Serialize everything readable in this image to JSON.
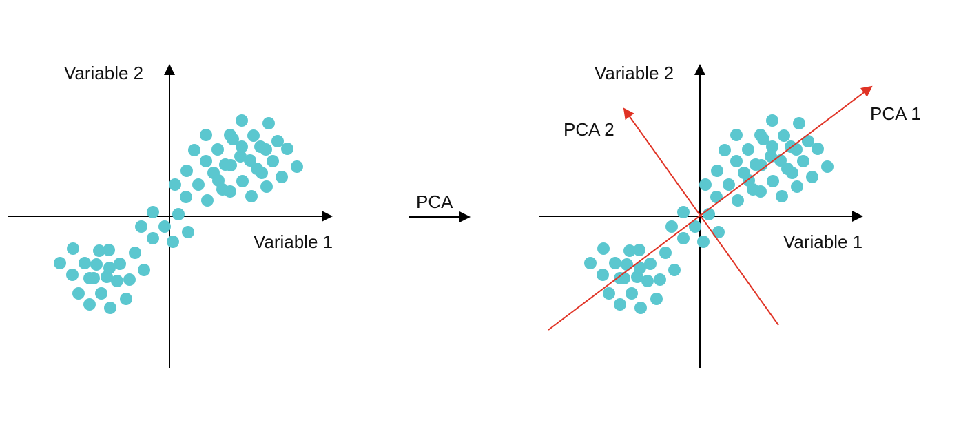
{
  "colors": {
    "axis": "#000000",
    "point": "#5bc7cf",
    "pca_axis": "#e03325",
    "text": "#111111"
  },
  "left_panel": {
    "x_axis_label": "Variable 1",
    "y_axis_label": "Variable 2"
  },
  "transition": {
    "label": "PCA"
  },
  "right_panel": {
    "x_axis_label": "Variable 1",
    "y_axis_label": "Variable 2",
    "pca1_label": "PCA 1",
    "pca2_label": "PCA 2"
  },
  "points": [
    [
      106,
      361
    ],
    [
      144,
      364
    ],
    [
      158,
      363
    ],
    [
      87,
      382
    ],
    [
      123,
      382
    ],
    [
      140,
      384
    ],
    [
      174,
      383
    ],
    [
      196,
      367
    ],
    [
      105,
      399
    ],
    [
      130,
      404
    ],
    [
      136,
      404
    ],
    [
      155,
      402
    ],
    [
      159,
      389
    ],
    [
      170,
      408
    ],
    [
      188,
      406
    ],
    [
      209,
      392
    ],
    [
      114,
      426
    ],
    [
      147,
      426
    ],
    [
      130,
      442
    ],
    [
      160,
      447
    ],
    [
      183,
      434
    ],
    [
      222,
      308
    ],
    [
      205,
      329
    ],
    [
      239,
      329
    ],
    [
      222,
      346
    ],
    [
      259,
      311
    ],
    [
      273,
      337
    ],
    [
      251,
      351
    ],
    [
      351,
      175
    ],
    [
      390,
      179
    ],
    [
      299,
      196
    ],
    [
      334,
      196
    ],
    [
      368,
      197
    ],
    [
      338,
      202
    ],
    [
      403,
      205
    ],
    [
      282,
      218
    ],
    [
      316,
      217
    ],
    [
      351,
      213
    ],
    [
      378,
      213
    ],
    [
      386,
      217
    ],
    [
      417,
      216
    ],
    [
      299,
      234
    ],
    [
      349,
      227
    ],
    [
      363,
      233
    ],
    [
      396,
      234
    ],
    [
      327,
      239
    ],
    [
      335,
      240
    ],
    [
      271,
      248
    ],
    [
      310,
      251
    ],
    [
      373,
      245
    ],
    [
      380,
      251
    ],
    [
      431,
      242
    ],
    [
      254,
      268
    ],
    [
      317,
      262
    ],
    [
      288,
      268
    ],
    [
      352,
      263
    ],
    [
      409,
      257
    ],
    [
      270,
      286
    ],
    [
      323,
      275
    ],
    [
      334,
      278
    ],
    [
      387,
      271
    ],
    [
      301,
      291
    ],
    [
      365,
      285
    ]
  ]
}
